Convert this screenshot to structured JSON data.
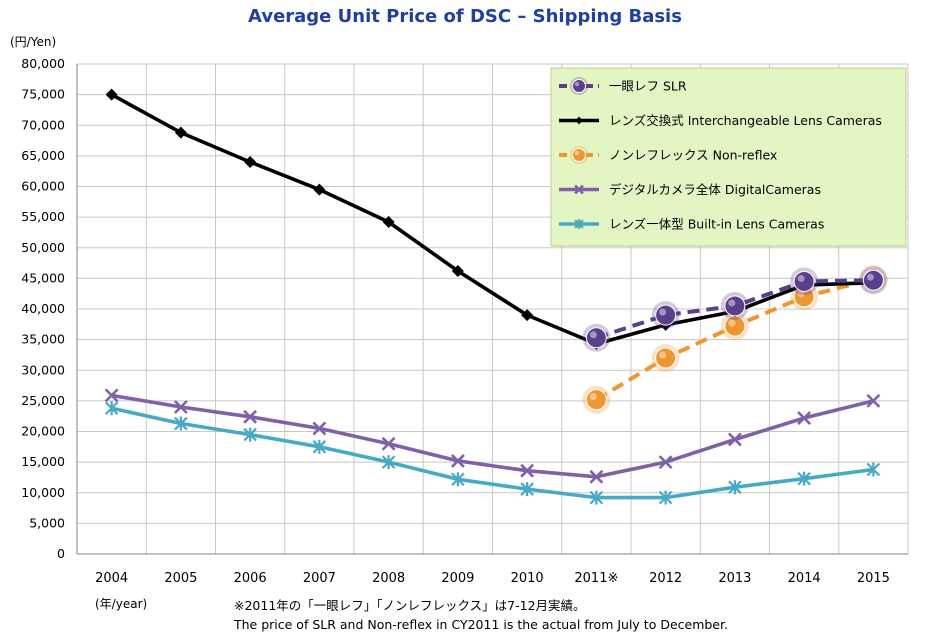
{
  "chart_data": {
    "type": "line",
    "title": "Average Unit Price of DSC – Shipping Basis",
    "y_unit_label": "(円/Yen)",
    "x_unit_label": "(年/year)",
    "categories": [
      "2004",
      "2005",
      "2006",
      "2007",
      "2008",
      "2009",
      "2010",
      "2011※",
      "2012",
      "2013",
      "2014",
      "2015"
    ],
    "ylim": [
      0,
      80000
    ],
    "ytick_step": 5000,
    "ytick_labels": [
      "0",
      "5,000",
      "10,000",
      "15,000",
      "20,000",
      "25,000",
      "30,000",
      "35,000",
      "40,000",
      "45,000",
      "50,000",
      "55,000",
      "60,000",
      "65,000",
      "70,000",
      "75,000",
      "80,000"
    ],
    "grid": true,
    "legend_position": "top-right",
    "series": [
      {
        "name": "一眼レフ SLR",
        "color": "#5a3f8c",
        "marker": "circle",
        "dashed": true,
        "values": [
          null,
          null,
          null,
          null,
          null,
          null,
          null,
          35300,
          39000,
          40500,
          44500,
          44700
        ]
      },
      {
        "name": "レンズ交換式 Interchangeable Lens Cameras",
        "color": "#000000",
        "marker": "diamond",
        "dashed": false,
        "values": [
          75000,
          68800,
          64000,
          59500,
          54200,
          46200,
          39000,
          34300,
          37400,
          39600,
          43900,
          44300
        ]
      },
      {
        "name": "ノンレフレックス Non-reflex",
        "color": "#f0962e",
        "marker": "circle",
        "dashed": true,
        "values": [
          null,
          null,
          null,
          null,
          null,
          null,
          null,
          25200,
          32000,
          37200,
          42000,
          44900
        ]
      },
      {
        "name": "デジタルカメラ全体 DigitalCameras",
        "color": "#8060a8",
        "marker": "x",
        "dashed": false,
        "values": [
          25900,
          24000,
          22400,
          20500,
          18000,
          15200,
          13600,
          12600,
          15000,
          18700,
          22200,
          25000
        ]
      },
      {
        "name": "レンズ一体型 Built-in Lens Cameras",
        "color": "#46aac4",
        "marker": "star",
        "dashed": false,
        "values": [
          23800,
          21300,
          19500,
          17500,
          15000,
          12200,
          10600,
          9200,
          9200,
          10900,
          12300,
          13800
        ]
      }
    ],
    "footnote_jp": "※2011年の「一眼レフ」「ノンレフレックス」は7-12月実績。",
    "footnote_en": "The price of SLR and Non-reflex in CY2011 is the actual from July to December."
  }
}
